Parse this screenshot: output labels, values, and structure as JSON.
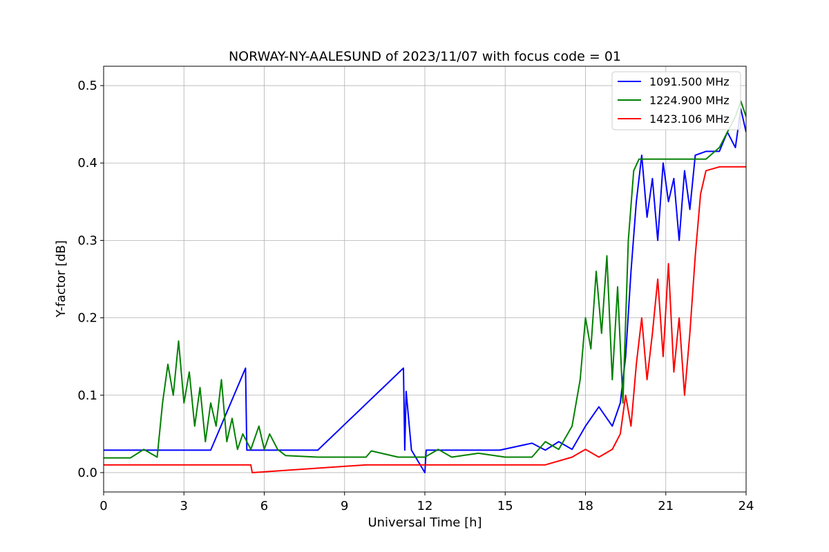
{
  "chart_data": {
    "type": "line",
    "title": "NORWAY-NY-AALESUND of 2023/11/07 with focus code = 01",
    "xlabel": "Universal Time [h]",
    "ylabel": "Y-factor [dB]",
    "xlim": [
      0,
      24
    ],
    "ylim": [
      -0.025,
      0.525
    ],
    "xticks": [
      0,
      3,
      6,
      9,
      12,
      15,
      18,
      21,
      24
    ],
    "xtick_labels": [
      "0",
      "3",
      "6",
      "9",
      "12",
      "15",
      "18",
      "21",
      "24"
    ],
    "yticks": [
      0.0,
      0.1,
      0.2,
      0.3,
      0.4,
      0.5
    ],
    "ytick_labels": [
      "0.0",
      "0.1",
      "0.2",
      "0.3",
      "0.4",
      "0.5"
    ],
    "grid": true,
    "legend_position": "top-right",
    "series": [
      {
        "name": "1091.500 MHz",
        "color": "#0000ff",
        "x": [
          0,
          1.0,
          2.0,
          4.0,
          5.3,
          5.35,
          5.4,
          8.0,
          11.2,
          11.25,
          11.3,
          11.5,
          12.0,
          12.05,
          14.8,
          16.0,
          16.5,
          17.0,
          17.5,
          18.0,
          18.5,
          19.0,
          19.3,
          19.5,
          19.7,
          19.9,
          20.1,
          20.3,
          20.5,
          20.7,
          20.9,
          21.1,
          21.3,
          21.5,
          21.7,
          21.9,
          22.1,
          22.5,
          23.0,
          23.3,
          23.6,
          23.8,
          24.0
        ],
        "y": [
          0.029,
          0.029,
          0.029,
          0.029,
          0.135,
          0.029,
          0.029,
          0.029,
          0.135,
          0.029,
          0.105,
          0.029,
          0.0,
          0.029,
          0.029,
          0.038,
          0.029,
          0.04,
          0.03,
          0.06,
          0.085,
          0.06,
          0.09,
          0.15,
          0.26,
          0.35,
          0.41,
          0.33,
          0.38,
          0.3,
          0.4,
          0.35,
          0.38,
          0.3,
          0.39,
          0.34,
          0.41,
          0.415,
          0.415,
          0.44,
          0.42,
          0.47,
          0.44
        ]
      },
      {
        "name": "1224.900 MHz",
        "color": "#008000",
        "x": [
          0,
          1.0,
          1.5,
          2.0,
          2.2,
          2.4,
          2.6,
          2.8,
          3.0,
          3.2,
          3.4,
          3.6,
          3.8,
          4.0,
          4.2,
          4.4,
          4.6,
          4.8,
          5.0,
          5.2,
          5.5,
          5.8,
          6.0,
          6.2,
          6.5,
          6.8,
          8.0,
          9.8,
          10.0,
          11.0,
          12.0,
          12.5,
          13.0,
          14.0,
          15.0,
          16.0,
          16.5,
          17.0,
          17.5,
          17.8,
          18.0,
          18.2,
          18.4,
          18.6,
          18.8,
          19.0,
          19.2,
          19.4,
          19.6,
          19.8,
          20.0,
          20.5,
          21.0,
          21.5,
          22.0,
          22.5,
          23.0,
          23.3,
          23.6,
          23.8,
          24.0
        ],
        "y": [
          0.019,
          0.019,
          0.03,
          0.02,
          0.09,
          0.14,
          0.1,
          0.17,
          0.09,
          0.13,
          0.06,
          0.11,
          0.04,
          0.09,
          0.06,
          0.12,
          0.04,
          0.07,
          0.03,
          0.05,
          0.03,
          0.06,
          0.03,
          0.05,
          0.03,
          0.022,
          0.02,
          0.02,
          0.028,
          0.02,
          0.02,
          0.03,
          0.02,
          0.025,
          0.02,
          0.02,
          0.04,
          0.03,
          0.06,
          0.12,
          0.2,
          0.16,
          0.26,
          0.18,
          0.28,
          0.12,
          0.24,
          0.09,
          0.3,
          0.39,
          0.405,
          0.405,
          0.405,
          0.405,
          0.405,
          0.405,
          0.42,
          0.44,
          0.46,
          0.48,
          0.46
        ]
      },
      {
        "name": "1423.106 MHz",
        "color": "#ff0000",
        "x": [
          0,
          5.5,
          5.55,
          9.8,
          16.5,
          17.5,
          18.0,
          18.5,
          19.0,
          19.3,
          19.5,
          19.7,
          19.9,
          20.1,
          20.3,
          20.5,
          20.7,
          20.9,
          21.1,
          21.3,
          21.5,
          21.7,
          21.9,
          22.1,
          22.3,
          22.5,
          23.0,
          23.5,
          24.0
        ],
        "y": [
          0.01,
          0.01,
          0.0,
          0.01,
          0.01,
          0.02,
          0.03,
          0.02,
          0.03,
          0.05,
          0.1,
          0.06,
          0.14,
          0.2,
          0.12,
          0.18,
          0.25,
          0.15,
          0.27,
          0.13,
          0.2,
          0.1,
          0.18,
          0.28,
          0.36,
          0.39,
          0.395,
          0.395,
          0.395
        ]
      }
    ]
  }
}
